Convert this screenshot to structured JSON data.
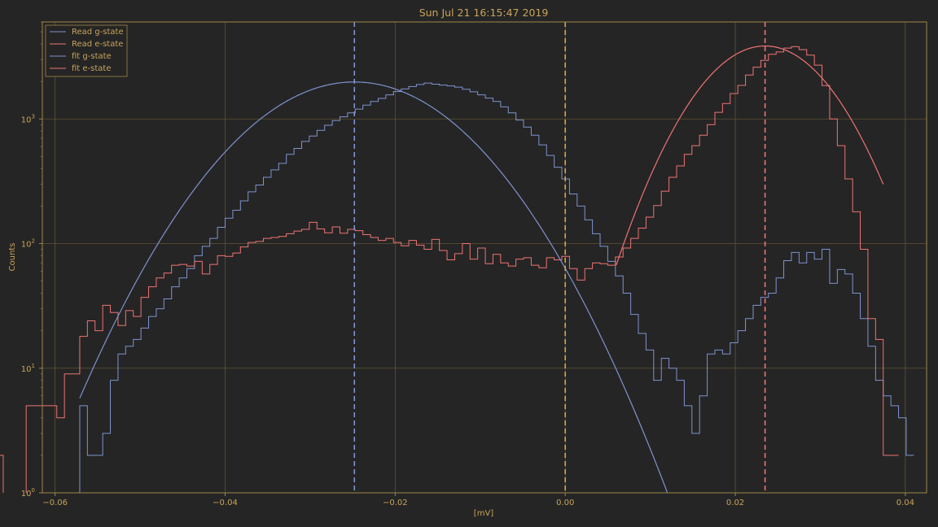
{
  "colors": {
    "background": "#252525",
    "axes": "#a08648",
    "text": "#c8a45a",
    "grid": "#5f5535",
    "g_state": "#7f93d0",
    "e_state": "#ef7373",
    "threshold": "#e0a43a"
  },
  "chart_data": {
    "type": "step-histogram",
    "title": "Sun Jul 21 16:15:47 2019",
    "xlabel": "[mV]",
    "ylabel": "Counts",
    "xlim": [
      -0.0615,
      0.0425
    ],
    "ylim": [
      1,
      6000
    ],
    "yscale": "log",
    "grid": true,
    "legend_position": "upper-left",
    "xticks": [
      {
        "v": -0.06,
        "label": "−0.06"
      },
      {
        "v": -0.04,
        "label": "−0.04"
      },
      {
        "v": -0.02,
        "label": "−0.02"
      },
      {
        "v": 0.0,
        "label": "0.00"
      },
      {
        "v": 0.02,
        "label": "0.02"
      },
      {
        "v": 0.04,
        "label": "0.04"
      }
    ],
    "yticks": [
      {
        "v": 1,
        "base": "10",
        "exp": "0"
      },
      {
        "v": 10,
        "base": "10",
        "exp": "1"
      },
      {
        "v": 100,
        "base": "10",
        "exp": "2"
      },
      {
        "v": 1000,
        "base": "10",
        "exp": "3"
      }
    ],
    "bin_edges": {
      "start": -0.0571,
      "width": 0.0009,
      "count": 105
    },
    "histograms": [
      {
        "name": "Read g-state",
        "color_key": "g_state",
        "counts": [
          5,
          2,
          2,
          3,
          8,
          13,
          15,
          17,
          21,
          26,
          30,
          36,
          45,
          53,
          63,
          80,
          95,
          110,
          135,
          160,
          185,
          220,
          260,
          295,
          340,
          390,
          440,
          520,
          580,
          660,
          730,
          810,
          890,
          970,
          1040,
          1120,
          1200,
          1290,
          1380,
          1460,
          1560,
          1660,
          1740,
          1820,
          1890,
          1940,
          1900,
          1870,
          1840,
          1800,
          1730,
          1650,
          1560,
          1470,
          1380,
          1250,
          1120,
          980,
          860,
          740,
          620,
          510,
          410,
          330,
          250,
          200,
          155,
          120,
          95,
          72,
          55,
          40,
          27,
          19,
          14,
          8,
          12,
          10,
          8,
          5,
          3,
          6,
          13,
          14,
          13,
          16,
          20,
          25,
          32,
          37,
          40,
          53,
          73,
          85,
          70,
          85,
          75,
          90,
          48,
          62,
          57,
          40,
          25,
          15,
          8,
          6,
          5,
          4,
          2
        ],
        "start_bin": 0
      },
      {
        "name": "Read e-state",
        "color_key": "e_state",
        "counts": [
          2,
          null,
          null,
          null,
          5,
          5,
          5,
          5,
          4,
          9,
          9,
          18,
          24,
          20,
          32,
          28,
          22,
          29,
          26,
          37,
          45,
          53,
          58,
          67,
          68,
          66,
          72,
          57,
          68,
          80,
          79,
          84,
          94,
          102,
          104,
          110,
          112,
          114,
          120,
          126,
          130,
          148,
          131,
          122,
          136,
          121,
          130,
          127,
          118,
          112,
          106,
          110,
          102,
          96,
          106,
          97,
          90,
          108,
          88,
          74,
          83,
          100,
          75,
          92,
          69,
          82,
          70,
          66,
          75,
          77,
          67,
          64,
          77,
          74,
          79,
          63,
          51,
          63,
          70,
          69,
          67,
          78,
          92,
          110,
          133,
          163,
          202,
          263,
          340,
          420,
          520,
          610,
          740,
          900,
          1130,
          1330,
          1600,
          1860,
          2250,
          2600,
          2950,
          3300,
          3450,
          3700,
          3800,
          3600,
          3250,
          2700,
          1850,
          1000,
          610,
          330,
          180,
          90,
          25,
          17,
          2,
          2
        ],
        "start_bin": -11
      }
    ],
    "fits": [
      {
        "name": "fit g-state",
        "color_key": "g_state",
        "amplitude": 1980,
        "mean": -0.0248,
        "sigma": 0.00945,
        "x_range": [
          -0.0571,
          0.012
        ]
      },
      {
        "name": "fit e-state",
        "color_key": "e_state",
        "amplitude": 3850,
        "mean": 0.0235,
        "sigma": 0.00615,
        "x_range": [
          0.006,
          0.0374
        ]
      }
    ],
    "vlines": [
      {
        "x": -0.0248,
        "color_key": "g_state",
        "style": "dashed"
      },
      {
        "x": 0.0,
        "color_key": "threshold",
        "style": "dashed"
      },
      {
        "x": 0.0235,
        "color_key": "e_state",
        "style": "dashed"
      }
    ]
  }
}
